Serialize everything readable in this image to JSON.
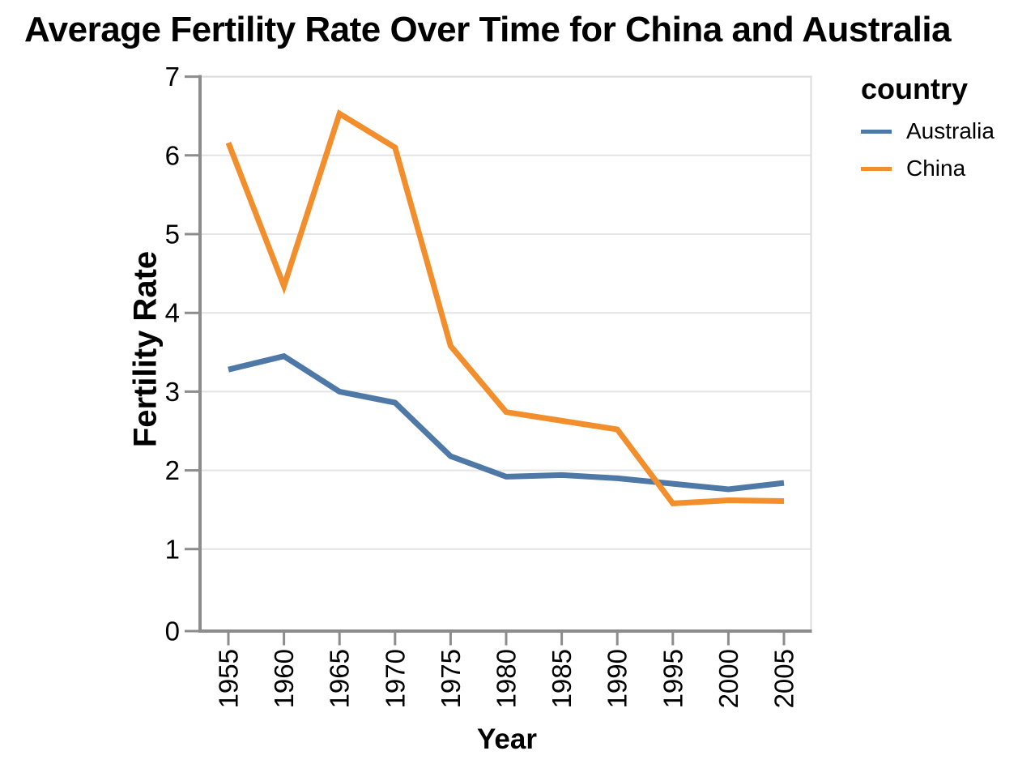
{
  "title": "Average Fertility Rate Over Time for China and Australia",
  "chart_data": {
    "type": "line",
    "x": [
      1955,
      1960,
      1965,
      1970,
      1975,
      1980,
      1985,
      1990,
      1995,
      2000,
      2005
    ],
    "xlabel": "Year",
    "ylabel": "Fertility Rate",
    "ylim": [
      0,
      7
    ],
    "yticks": [
      0,
      1,
      2,
      3,
      4,
      5,
      6,
      7
    ],
    "grid": "horizontal-only",
    "legend_title": "country",
    "legend_position": "right",
    "series": [
      {
        "name": "Australia",
        "color": "#4E79A7",
        "values": [
          3.28,
          3.45,
          3.0,
          2.86,
          2.18,
          1.92,
          1.94,
          1.9,
          1.83,
          1.76,
          1.84
        ]
      },
      {
        "name": "China",
        "color": "#F28E2B",
        "values": [
          6.16,
          4.34,
          6.53,
          6.1,
          3.58,
          2.74,
          2.63,
          2.52,
          1.58,
          1.62,
          1.61
        ]
      }
    ]
  },
  "colors": {
    "background": "#ffffff",
    "text": "#000000",
    "axis": "#8c8c8c",
    "grid": "#e4e4e4",
    "border": "#dcdcdc"
  }
}
